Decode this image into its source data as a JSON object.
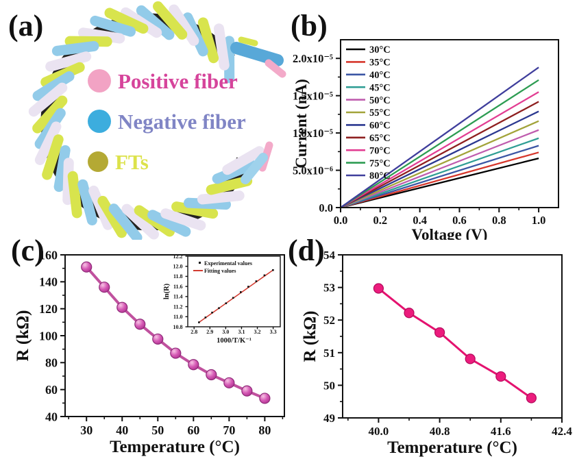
{
  "panels": {
    "a": {
      "label": "(a)",
      "legend": [
        {
          "name": "Positive fiber",
          "dot_color": "#f2a3c4",
          "text_color": "#d6449b"
        },
        {
          "name": "Negative fiber",
          "dot_color": "#3cadde",
          "text_color": "#8085c5"
        },
        {
          "name": "FTs",
          "dot_color": "#b4a934",
          "text_color": "#dce24b"
        }
      ],
      "fiber_colors": [
        "#92cbe9",
        "#eae3f1",
        "#d8e44d"
      ],
      "accent_pink": "#f3aac9",
      "shadow_color": "#23221f"
    },
    "b": {
      "label": "(b)"
    },
    "c": {
      "label": "(c)"
    },
    "d": {
      "label": "(d)"
    }
  },
  "chart_data": [
    {
      "id": "b",
      "type": "line",
      "title": "",
      "xlabel": "Voltage (V)",
      "ylabel": "Current (nA)",
      "xlim": [
        0,
        1.1
      ],
      "ylim": [
        0,
        2.25e-05
      ],
      "grid": false,
      "legend_position": "top-left",
      "xticks": [
        {
          "v": 0.0,
          "t": "0.0"
        },
        {
          "v": 0.2,
          "t": "0.2"
        },
        {
          "v": 0.4,
          "t": "0.4"
        },
        {
          "v": 0.6,
          "t": "0.6"
        },
        {
          "v": 0.8,
          "t": "0.8"
        },
        {
          "v": 1.0,
          "t": "1.0"
        }
      ],
      "xminor": [
        0.1,
        0.3,
        0.5,
        0.7,
        0.9
      ],
      "yticks": [
        {
          "v": 0,
          "t": "0.0"
        },
        {
          "v": 5e-06,
          "t": "5.0x10⁻⁶"
        },
        {
          "v": 1e-05,
          "t": "1.0x10⁻⁵"
        },
        {
          "v": 1.5e-05,
          "t": "1.5x10⁻⁵"
        },
        {
          "v": 2e-05,
          "t": "2.0x10⁻⁵"
        }
      ],
      "yminor": [
        2.5e-06,
        7.5e-06,
        1.25e-05,
        1.75e-05
      ],
      "x": [
        0,
        1
      ],
      "series": [
        {
          "name": "30°C",
          "color": "#000000",
          "y_at_1V": 6.6e-06
        },
        {
          "name": "35°C",
          "color": "#d6372c",
          "y_at_1V": 7.4e-06
        },
        {
          "name": "40°C",
          "color": "#3b55a4",
          "y_at_1V": 8.3e-06
        },
        {
          "name": "45°C",
          "color": "#2f9e94",
          "y_at_1V": 9.3e-06
        },
        {
          "name": "50°C",
          "color": "#bf5cae",
          "y_at_1V": 1.04e-05
        },
        {
          "name": "55°C",
          "color": "#a2a339",
          "y_at_1V": 1.16e-05
        },
        {
          "name": "60°C",
          "color": "#2b3890",
          "y_at_1V": 1.29e-05
        },
        {
          "name": "65°C",
          "color": "#8e1f1f",
          "y_at_1V": 1.42e-05
        },
        {
          "name": "70°C",
          "color": "#e23d92",
          "y_at_1V": 1.55e-05
        },
        {
          "name": "75°C",
          "color": "#2d9c52",
          "y_at_1V": 1.71e-05
        },
        {
          "name": "80°C",
          "color": "#3f3e9c",
          "y_at_1V": 1.88e-05
        }
      ]
    },
    {
      "id": "c",
      "type": "line-markers",
      "title": "",
      "xlabel": "Temperature (°C)",
      "ylabel": "R (kΩ)",
      "xlim": [
        24,
        85.5
      ],
      "ylim": [
        40,
        160
      ],
      "grid": false,
      "xticks": [
        {
          "v": 30,
          "t": "30"
        },
        {
          "v": 40,
          "t": "40"
        },
        {
          "v": 50,
          "t": "50"
        },
        {
          "v": 60,
          "t": "60"
        },
        {
          "v": 70,
          "t": "70"
        },
        {
          "v": 80,
          "t": "80"
        }
      ],
      "xminor": [
        25,
        35,
        45,
        55,
        65,
        75,
        85
      ],
      "yticks": [
        {
          "v": 40,
          "t": "40"
        },
        {
          "v": 60,
          "t": "60"
        },
        {
          "v": 80,
          "t": "80"
        },
        {
          "v": 100,
          "t": "100"
        },
        {
          "v": 120,
          "t": "120"
        },
        {
          "v": 140,
          "t": "140"
        },
        {
          "v": 160,
          "t": "160"
        }
      ],
      "yminor": [
        50,
        70,
        90,
        110,
        130,
        150
      ],
      "x": [
        30,
        35,
        40,
        45,
        50,
        55,
        60,
        65,
        70,
        75,
        80
      ],
      "y": [
        151,
        136,
        121,
        108.5,
        97.5,
        87,
        78.5,
        71,
        65,
        59,
        53.5
      ],
      "line_color": "#c0519e",
      "marker_edge": "#8e2a78"
    },
    {
      "id": "c_inset",
      "type": "scatter-fit",
      "title": "",
      "xlabel": "1000/T/K⁻¹",
      "ylabel": "ln(R)",
      "xlim": [
        2.76,
        3.345
      ],
      "ylim": [
        10.8,
        12.2
      ],
      "grid": false,
      "legend": [
        {
          "label": "Experimental values",
          "type": "marker",
          "color": "#111111"
        },
        {
          "label": "Fitting values",
          "type": "line",
          "color": "#d23b30"
        }
      ],
      "xticks": [
        {
          "v": 2.8,
          "t": "2.8"
        },
        {
          "v": 2.9,
          "t": "2.9"
        },
        {
          "v": 3.0,
          "t": "3.0"
        },
        {
          "v": 3.1,
          "t": "3.1"
        },
        {
          "v": 3.2,
          "t": "3.2"
        },
        {
          "v": 3.3,
          "t": "3.3"
        }
      ],
      "xminor": [],
      "yticks": [
        {
          "v": 10.8,
          "t": "10.8"
        },
        {
          "v": 11.0,
          "t": "11.0"
        },
        {
          "v": 11.2,
          "t": "11.2"
        },
        {
          "v": 11.4,
          "t": "11.4"
        },
        {
          "v": 11.6,
          "t": "11.6"
        },
        {
          "v": 11.8,
          "t": "11.8"
        },
        {
          "v": 12.0,
          "t": "12.0"
        },
        {
          "v": 12.2,
          "t": "12.2"
        }
      ],
      "yminor": [],
      "x": [
        2.831,
        2.872,
        2.914,
        2.957,
        3.002,
        3.047,
        3.095,
        3.143,
        3.193,
        3.245,
        3.299
      ],
      "y": [
        10.888,
        10.985,
        11.082,
        11.17,
        11.266,
        11.374,
        11.488,
        11.595,
        11.703,
        11.821,
        11.925
      ],
      "point_color": "#111111",
      "fit_color": "#d23b30"
    },
    {
      "id": "d",
      "type": "line-markers",
      "title": "",
      "xlabel": "Temperature (°C)",
      "ylabel": "R (kΩ)",
      "xlim": [
        39.53,
        42.4
      ],
      "ylim": [
        49,
        54
      ],
      "grid": false,
      "xticks": [
        {
          "v": 40.0,
          "t": "40.0"
        },
        {
          "v": 40.8,
          "t": "40.8"
        },
        {
          "v": 41.6,
          "t": "41.6"
        },
        {
          "v": 42.4,
          "t": "42.4"
        }
      ],
      "xminor": [
        39.6,
        40.4,
        41.2,
        42.0
      ],
      "yticks": [
        {
          "v": 49,
          "t": "49"
        },
        {
          "v": 50,
          "t": "50"
        },
        {
          "v": 51,
          "t": "51"
        },
        {
          "v": 52,
          "t": "52"
        },
        {
          "v": 53,
          "t": "53"
        },
        {
          "v": 54,
          "t": "54"
        }
      ],
      "yminor": [
        49.5,
        50.5,
        51.5,
        52.5,
        53.5
      ],
      "x": [
        40.0,
        40.4,
        40.8,
        41.2,
        41.6,
        42.0
      ],
      "y": [
        52.97,
        52.22,
        51.62,
        50.81,
        50.27,
        49.61
      ],
      "line_color": "#e4126f",
      "marker_fill": "#ec1c7d",
      "marker_edge": "#b30a5c"
    }
  ]
}
